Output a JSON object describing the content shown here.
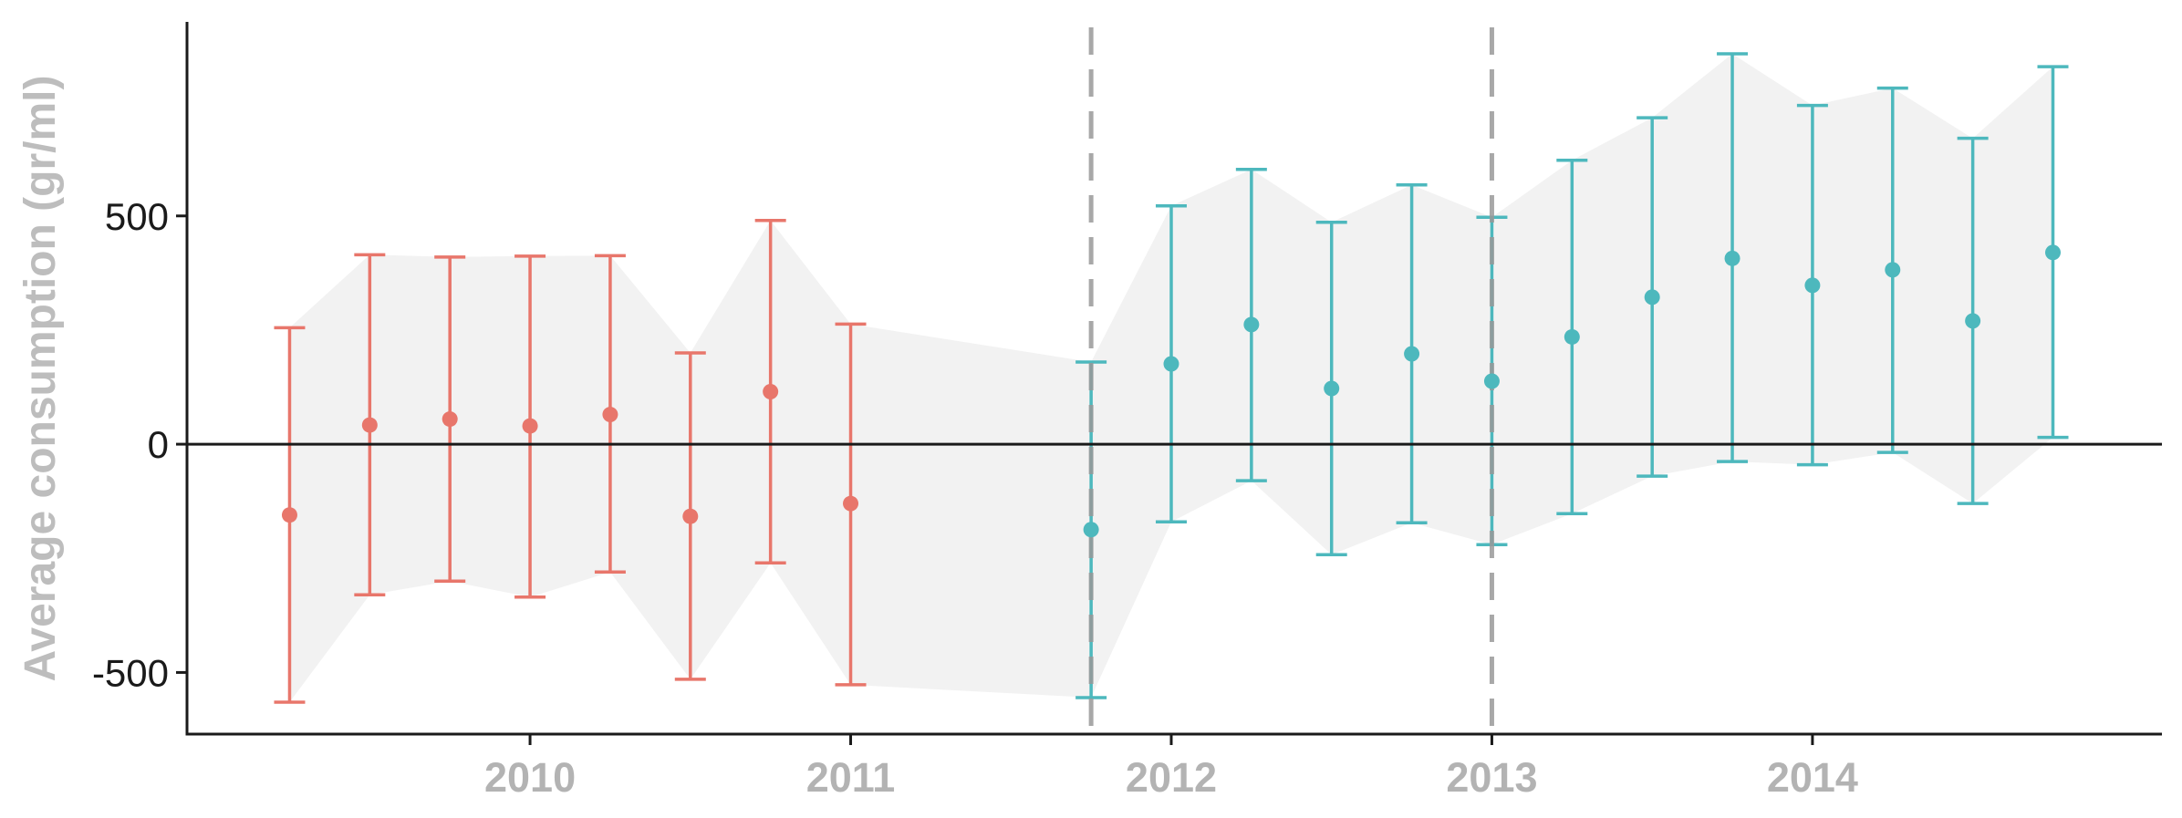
{
  "chart_data": {
    "type": "scatter",
    "title": "",
    "xlabel": "",
    "ylabel": "Average consumption (gr/ml)",
    "x_ticks": [
      2010,
      2011,
      2012,
      2013,
      2014
    ],
    "y_ticks": [
      -500,
      0,
      500
    ],
    "xlim": [
      2008.93,
      2015.09
    ],
    "ylim": [
      -635,
      925
    ],
    "reference_lines": {
      "horizontal_y": 0,
      "vertical_dashed_x": [
        2011.75,
        2013.0
      ]
    },
    "grid": false,
    "legend": "none",
    "colors": {
      "pre": "#e8766b",
      "post": "#4db8bd",
      "ribbon": "#f2f2f2",
      "dashed": "#999999",
      "axis": "#1a1a1a"
    },
    "series": [
      {
        "color_key": "pre",
        "points": [
          {
            "x": 2009.25,
            "y": -155,
            "lo": -565,
            "hi": 255
          },
          {
            "x": 2009.5,
            "y": 42,
            "lo": -330,
            "hi": 415
          },
          {
            "x": 2009.75,
            "y": 55,
            "lo": -300,
            "hi": 410
          },
          {
            "x": 2010.0,
            "y": 40,
            "lo": -335,
            "hi": 412
          },
          {
            "x": 2010.25,
            "y": 65,
            "lo": -280,
            "hi": 413
          },
          {
            "x": 2010.5,
            "y": -158,
            "lo": -515,
            "hi": 200
          },
          {
            "x": 2010.75,
            "y": 115,
            "lo": -260,
            "hi": 490
          },
          {
            "x": 2011.0,
            "y": -130,
            "lo": -527,
            "hi": 263
          }
        ]
      },
      {
        "color_key": "post",
        "points": [
          {
            "x": 2011.75,
            "y": -187,
            "lo": -555,
            "hi": 180
          },
          {
            "x": 2012.0,
            "y": 176,
            "lo": -170,
            "hi": 522
          },
          {
            "x": 2012.25,
            "y": 262,
            "lo": -80,
            "hi": 602
          },
          {
            "x": 2012.5,
            "y": 122,
            "lo": -242,
            "hi": 486
          },
          {
            "x": 2012.75,
            "y": 198,
            "lo": -172,
            "hi": 568
          },
          {
            "x": 2013.0,
            "y": 138,
            "lo": -220,
            "hi": 497
          },
          {
            "x": 2013.25,
            "y": 235,
            "lo": -152,
            "hi": 622
          },
          {
            "x": 2013.5,
            "y": 322,
            "lo": -70,
            "hi": 715
          },
          {
            "x": 2013.75,
            "y": 407,
            "lo": -38,
            "hi": 855
          },
          {
            "x": 2014.0,
            "y": 348,
            "lo": -45,
            "hi": 742
          },
          {
            "x": 2014.25,
            "y": 382,
            "lo": -18,
            "hi": 780
          },
          {
            "x": 2014.5,
            "y": 270,
            "lo": -130,
            "hi": 670
          },
          {
            "x": 2014.75,
            "y": 420,
            "lo": 15,
            "hi": 827
          }
        ]
      }
    ]
  }
}
